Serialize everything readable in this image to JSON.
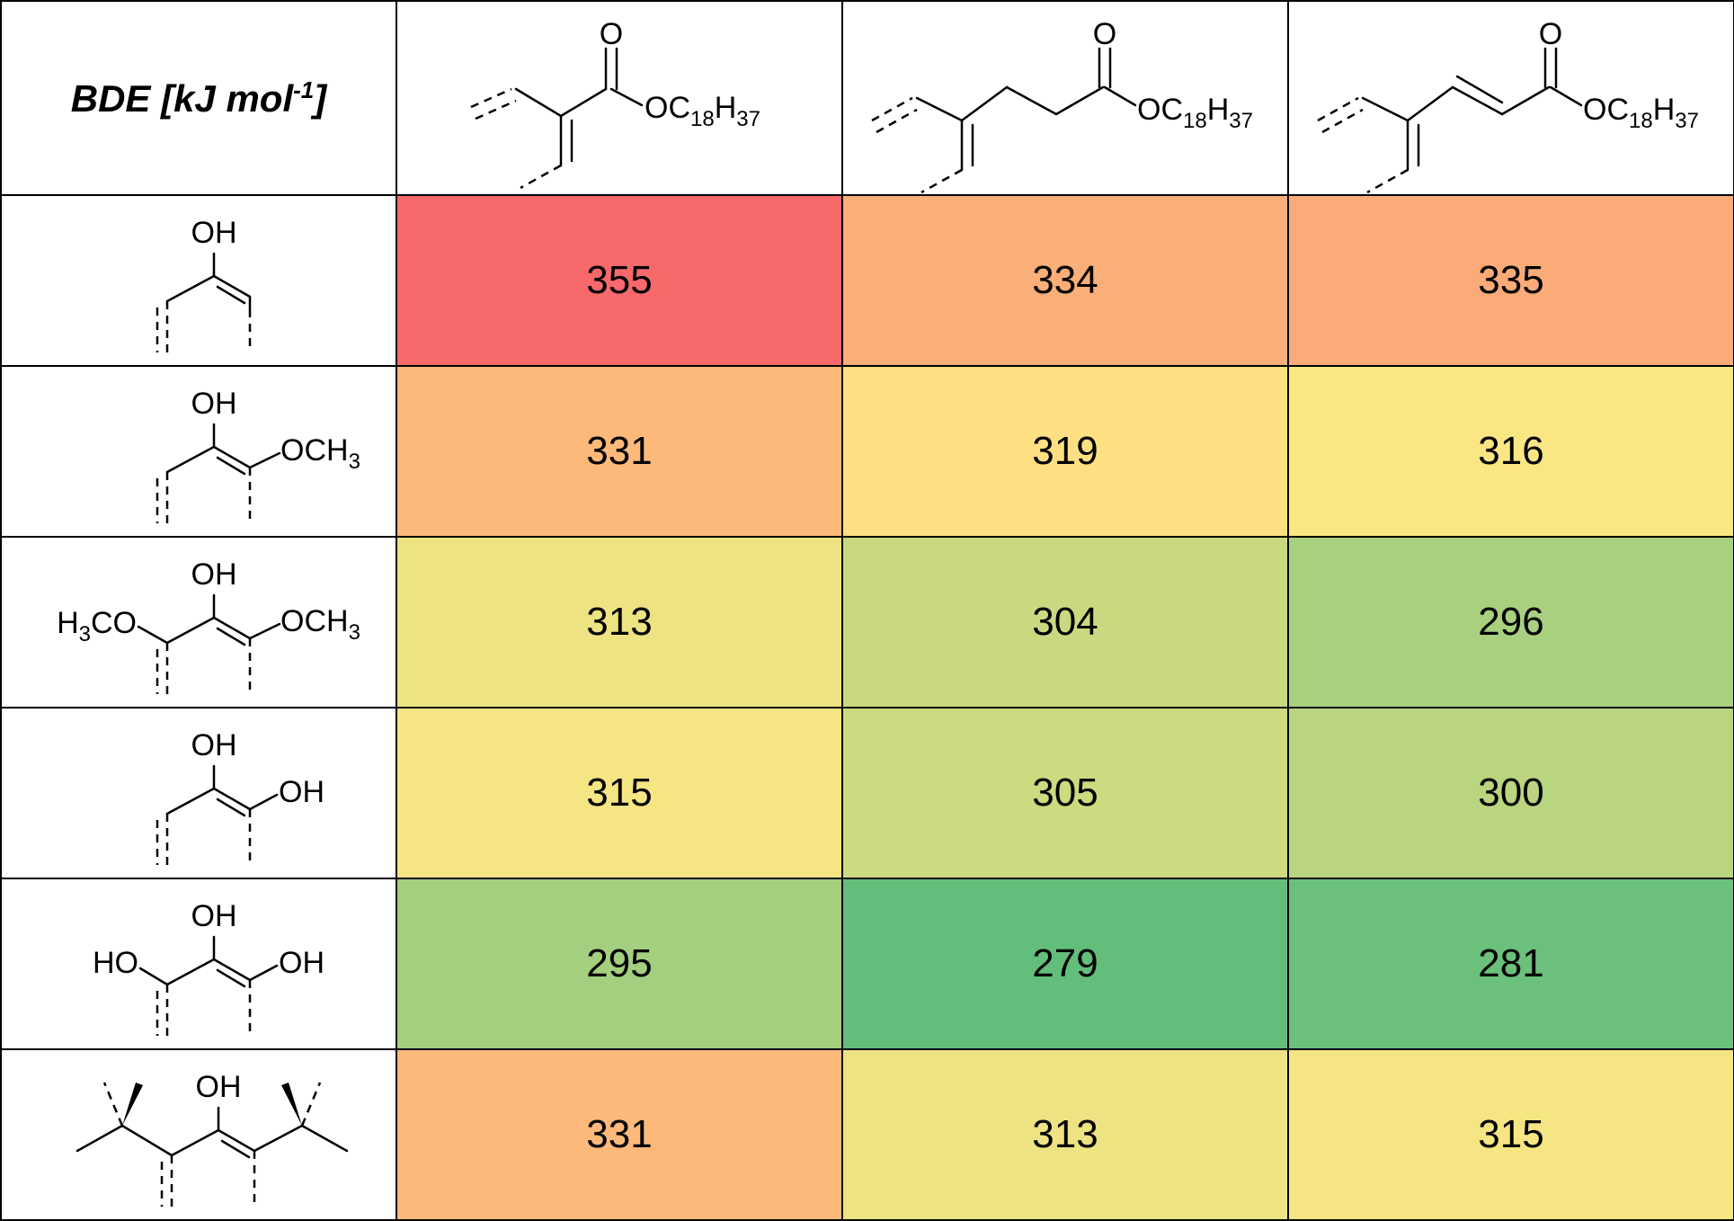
{
  "chart_data": {
    "type": "table",
    "title": "BDE [kJ mol-1]",
    "header": {
      "title_main": "BDE [kJ mol",
      "title_sup": "-1",
      "title_close": "]"
    },
    "columns": [
      {
        "ester_label": "OC18H37",
        "ester_main": "OC",
        "ester_sub1": "18",
        "ester_h": "H",
        "ester_sub2": "37"
      },
      {
        "ester_label": "OC18H37",
        "ester_main": "OC",
        "ester_sub1": "18",
        "ester_h": "H",
        "ester_sub2": "37"
      },
      {
        "ester_label": "OC18H37",
        "ester_main": "OC",
        "ester_sub1": "18",
        "ester_h": "H",
        "ester_sub2": "37"
      }
    ],
    "rows": [
      {
        "labels": {
          "oh": "OH"
        },
        "values": [
          355,
          334,
          335
        ]
      },
      {
        "labels": {
          "oh": "OH",
          "right": "OCH",
          "right_sub": "3"
        },
        "values": [
          331,
          319,
          316
        ]
      },
      {
        "labels": {
          "oh": "OH",
          "left": "CO",
          "left_pre": "H",
          "left_sub": "3",
          "right": "OCH",
          "right_sub": "3"
        },
        "values": [
          313,
          304,
          296
        ]
      },
      {
        "labels": {
          "oh": "OH",
          "right": "OH"
        },
        "values": [
          315,
          305,
          300
        ]
      },
      {
        "labels": {
          "oh": "OH",
          "left": "HO",
          "right": "OH"
        },
        "values": [
          295,
          279,
          281
        ]
      },
      {
        "labels": {
          "oh": "OH"
        },
        "values": [
          331,
          313,
          315
        ]
      }
    ],
    "color_scale": {
      "min": 279,
      "max": 355,
      "low_color": "#63be7b",
      "mid_color": "#fee783",
      "high_color": "#f8696b"
    }
  }
}
